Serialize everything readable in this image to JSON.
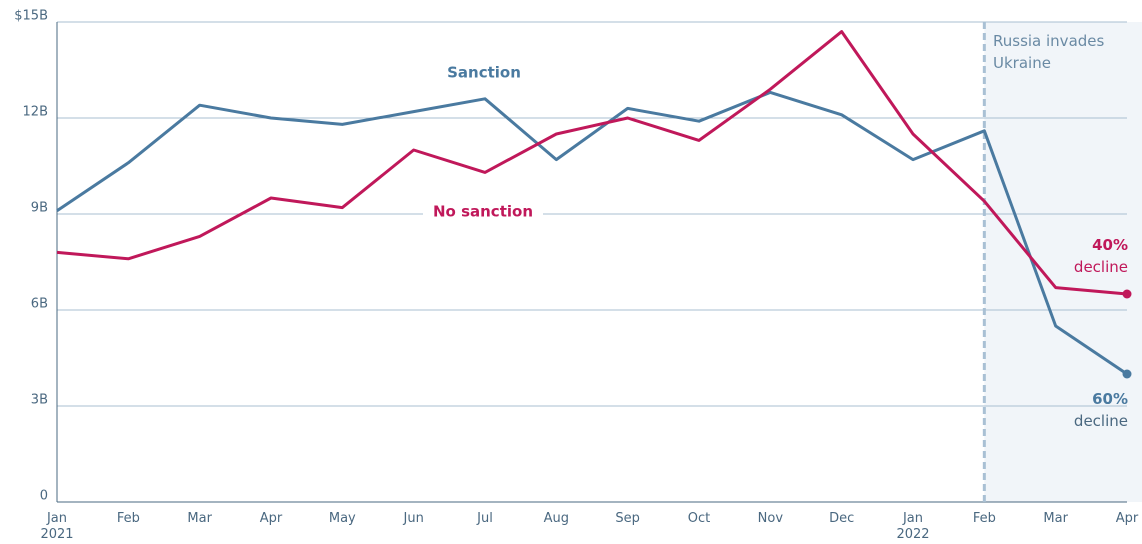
{
  "chart_data": {
    "type": "line",
    "categories": [
      "Jan 2021",
      "Feb",
      "Mar",
      "Apr",
      "May",
      "Jun",
      "Jul",
      "Aug",
      "Sep",
      "Oct",
      "Nov",
      "Dec",
      "Jan 2022",
      "Feb",
      "Mar",
      "Apr"
    ],
    "series": [
      {
        "name": "Sanction",
        "color": "#4a7aa0",
        "values": [
          9.1,
          10.6,
          12.4,
          12.0,
          11.8,
          12.2,
          12.6,
          10.7,
          12.3,
          11.9,
          12.8,
          12.1,
          10.7,
          11.6,
          5.5,
          4.0
        ],
        "decline_label": "60%",
        "decline_text": "decline"
      },
      {
        "name": "No sanction",
        "color": "#c0185a",
        "values": [
          7.8,
          7.6,
          8.3,
          9.5,
          9.2,
          11.0,
          10.3,
          11.5,
          12.0,
          11.3,
          12.9,
          14.7,
          11.5,
          9.4,
          6.7,
          6.5
        ],
        "decline_label": "40%",
        "decline_text": "decline"
      }
    ],
    "ylim": [
      0,
      15
    ],
    "yticks": [
      0,
      {
        "value": 3,
        "label": "3B"
      },
      {
        "value": 6,
        "label": "6B"
      },
      {
        "value": 9,
        "label": "9B"
      },
      {
        "value": 12,
        "label": "12B"
      },
      {
        "value": 15,
        "label": "$15B"
      }
    ],
    "grid": true,
    "event_label": "Russia invades Ukraine"
  }
}
